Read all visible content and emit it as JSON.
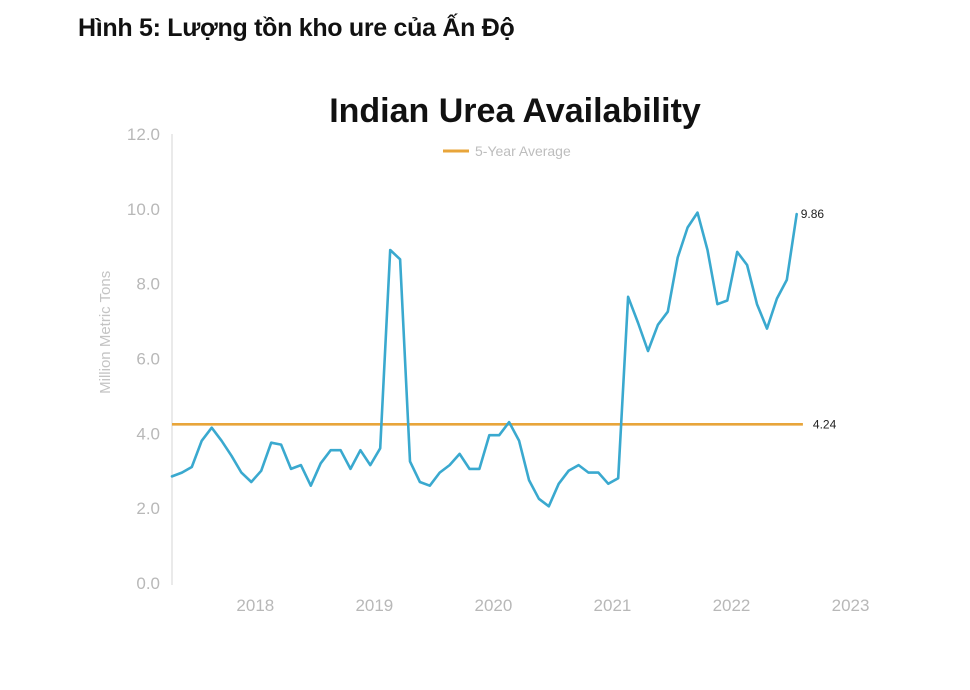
{
  "caption": "Hình 5: Lượng tồn kho ure của Ấn Độ",
  "chart_data": {
    "type": "line",
    "title": "Indian Urea Availability",
    "xlabel": "",
    "ylabel": "Million Metric Tons",
    "ylim": [
      0,
      12
    ],
    "yticks": [
      "0.0",
      "2.0",
      "4.0",
      "6.0",
      "8.0",
      "10.0",
      "12.0"
    ],
    "xticks": [
      "2018",
      "2019",
      "2020",
      "2021",
      "2022",
      "2023"
    ],
    "grid": false,
    "legend": {
      "position": "top-center",
      "entries": [
        "5-Year Average"
      ]
    },
    "colors": {
      "series": "#3aa9cf",
      "average": "#e8a53a",
      "axis": "#dddddd"
    },
    "series": [
      {
        "name": "Indian Urea Availability",
        "x_start": 2017.5,
        "x_step": 0.0833,
        "values": [
          2.85,
          2.95,
          3.1,
          3.8,
          4.15,
          3.8,
          3.4,
          2.95,
          2.7,
          3.0,
          3.75,
          3.7,
          3.05,
          3.15,
          2.6,
          3.2,
          3.55,
          3.55,
          3.05,
          3.55,
          3.15,
          3.6,
          8.9,
          8.65,
          3.25,
          2.7,
          2.6,
          2.95,
          3.15,
          3.45,
          3.05,
          3.05,
          3.95,
          3.95,
          4.3,
          3.8,
          2.75,
          2.25,
          2.05,
          2.65,
          3.0,
          3.15,
          2.95,
          2.95,
          2.65,
          2.8,
          7.65,
          6.95,
          6.2,
          6.9,
          7.25,
          8.7,
          9.5,
          9.9,
          8.9,
          7.45,
          7.55,
          8.85,
          8.5,
          7.45,
          6.8,
          7.6,
          8.1,
          9.86
        ]
      },
      {
        "name": "5-Year Average",
        "value": 4.24
      }
    ],
    "annotations": [
      {
        "text": "9.86",
        "x": 2023.25,
        "y": 9.86
      },
      {
        "text": "4.24",
        "x": 2022.8,
        "y": 4.24
      }
    ]
  }
}
